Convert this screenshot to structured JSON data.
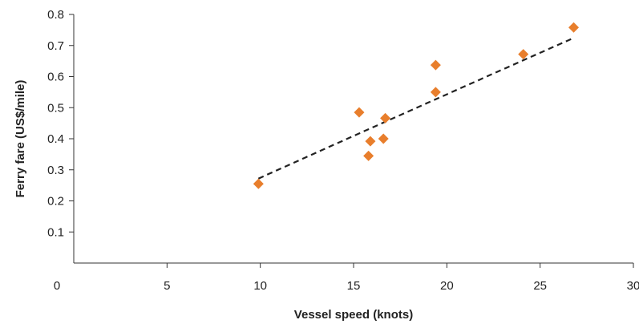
{
  "chart_data": {
    "type": "scatter",
    "title": "",
    "xlabel": "Vessel speed (knots)",
    "ylabel": "Ferry fare (US$/mile)",
    "xlim": [
      0,
      30
    ],
    "ylim": [
      0,
      0.8
    ],
    "x_ticks": [
      "0",
      "5",
      "10",
      "15",
      "20",
      "25",
      "30"
    ],
    "y_ticks": [
      "0.1",
      "0.2",
      "0.3",
      "0.4",
      "0.5",
      "0.6",
      "0.7",
      "0.8"
    ],
    "grid": false,
    "legend": "none",
    "marker": "diamond",
    "marker_color": "#E87E2C",
    "trendline": {
      "type": "power",
      "style": "dashed",
      "color": "#222222",
      "x_range": [
        9.9,
        26.8
      ],
      "coefficient": 0.0284,
      "exponent": 0.985
    },
    "points": [
      {
        "x": 9.9,
        "y": 0.255
      },
      {
        "x": 15.3,
        "y": 0.485
      },
      {
        "x": 15.8,
        "y": 0.345
      },
      {
        "x": 15.9,
        "y": 0.392
      },
      {
        "x": 16.6,
        "y": 0.4
      },
      {
        "x": 16.7,
        "y": 0.466
      },
      {
        "x": 19.4,
        "y": 0.637
      },
      {
        "x": 19.4,
        "y": 0.55
      },
      {
        "x": 24.1,
        "y": 0.672
      },
      {
        "x": 26.8,
        "y": 0.758
      }
    ]
  }
}
